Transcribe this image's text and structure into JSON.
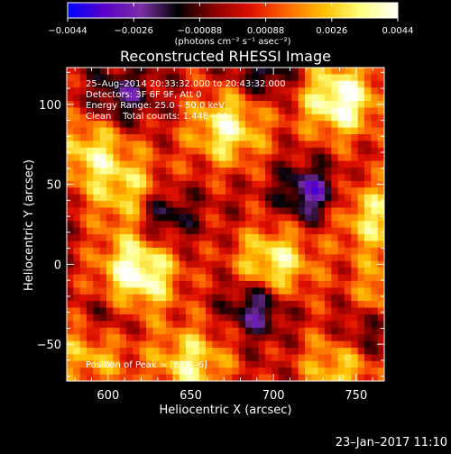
{
  "colors": {
    "background": "#000000",
    "foreground": "#ffffff",
    "colormap": [
      "#0000ff",
      "#5b00c8",
      "#7a2fa8",
      "#000000",
      "#8a0000",
      "#e01000",
      "#ff6a00",
      "#ffc000",
      "#ffff80",
      "#ffffff"
    ]
  },
  "colorbar": {
    "tick_labels": [
      "−0.0044",
      "−0.0026",
      "−0.00088",
      "0.00088",
      "0.0026",
      "0.0044"
    ],
    "units": "(photons cm⁻² s⁻¹ asec⁻²)",
    "range": [
      -0.0044,
      0.0044
    ]
  },
  "annotations": {
    "time_range": "25–Aug–2014 20:33:32.000 to 20:43:32.000",
    "detectors": "Detectors: 3F 6F 9F, Att 0",
    "energy": "Energy Range: 25.0 – 50.0 keV",
    "method": "Clean    Total counts: 1.44E+04",
    "peak": "Position of Peak = [619,–6]"
  },
  "footer": {
    "timestamp": "23–Jan–2017 11:10"
  },
  "chart_data": {
    "type": "heatmap",
    "title": "Reconstructed RHESSI Image",
    "xlabel": "Heliocentric X (arcsec)",
    "ylabel": "Heliocentric Y (arcsec)",
    "xlim": [
      575,
      767
    ],
    "ylim": [
      -73,
      123
    ],
    "xticks": [
      600,
      650,
      700,
      750
    ],
    "xtick_labels": [
      "600",
      "650",
      "700",
      "750"
    ],
    "yticks": [
      -50,
      0,
      50,
      100
    ],
    "ytick_labels": [
      "−50",
      "0",
      "50",
      "100"
    ],
    "units": "photons cm⁻² s⁻¹ asec⁻²",
    "value_range": [
      -0.0044,
      0.0044
    ],
    "peak_position": [
      619,
      -6
    ],
    "grid": false,
    "positive_sources": [
      {
        "x": 740,
        "y": 103,
        "value": 0.0044
      },
      {
        "x": 672,
        "y": 85,
        "value": 0.0036
      },
      {
        "x": 590,
        "y": 70,
        "value": 0.003
      },
      {
        "x": 618,
        "y": -6,
        "value": 0.0044
      },
      {
        "x": 700,
        "y": 0,
        "value": 0.0036
      },
      {
        "x": 760,
        "y": 30,
        "value": 0.003
      },
      {
        "x": 615,
        "y": 42,
        "value": 0.0028
      },
      {
        "x": 770,
        "y": -20,
        "value": 0.0026
      },
      {
        "x": 650,
        "y": -62,
        "value": 0.0032
      },
      {
        "x": 590,
        "y": -55,
        "value": 0.0026
      },
      {
        "x": 740,
        "y": -64,
        "value": 0.0028
      }
    ],
    "negative_sources": [
      {
        "x": 632,
        "y": 31,
        "value": -0.003
      },
      {
        "x": 722,
        "y": 44,
        "value": -0.003
      },
      {
        "x": 608,
        "y": 104,
        "value": -0.0022
      },
      {
        "x": 690,
        "y": -26,
        "value": -0.003
      },
      {
        "x": 755,
        "y": -42,
        "value": -0.0024
      },
      {
        "x": 600,
        "y": -34,
        "value": -0.0018
      },
      {
        "x": 695,
        "y": 120,
        "value": -0.002
      }
    ]
  }
}
